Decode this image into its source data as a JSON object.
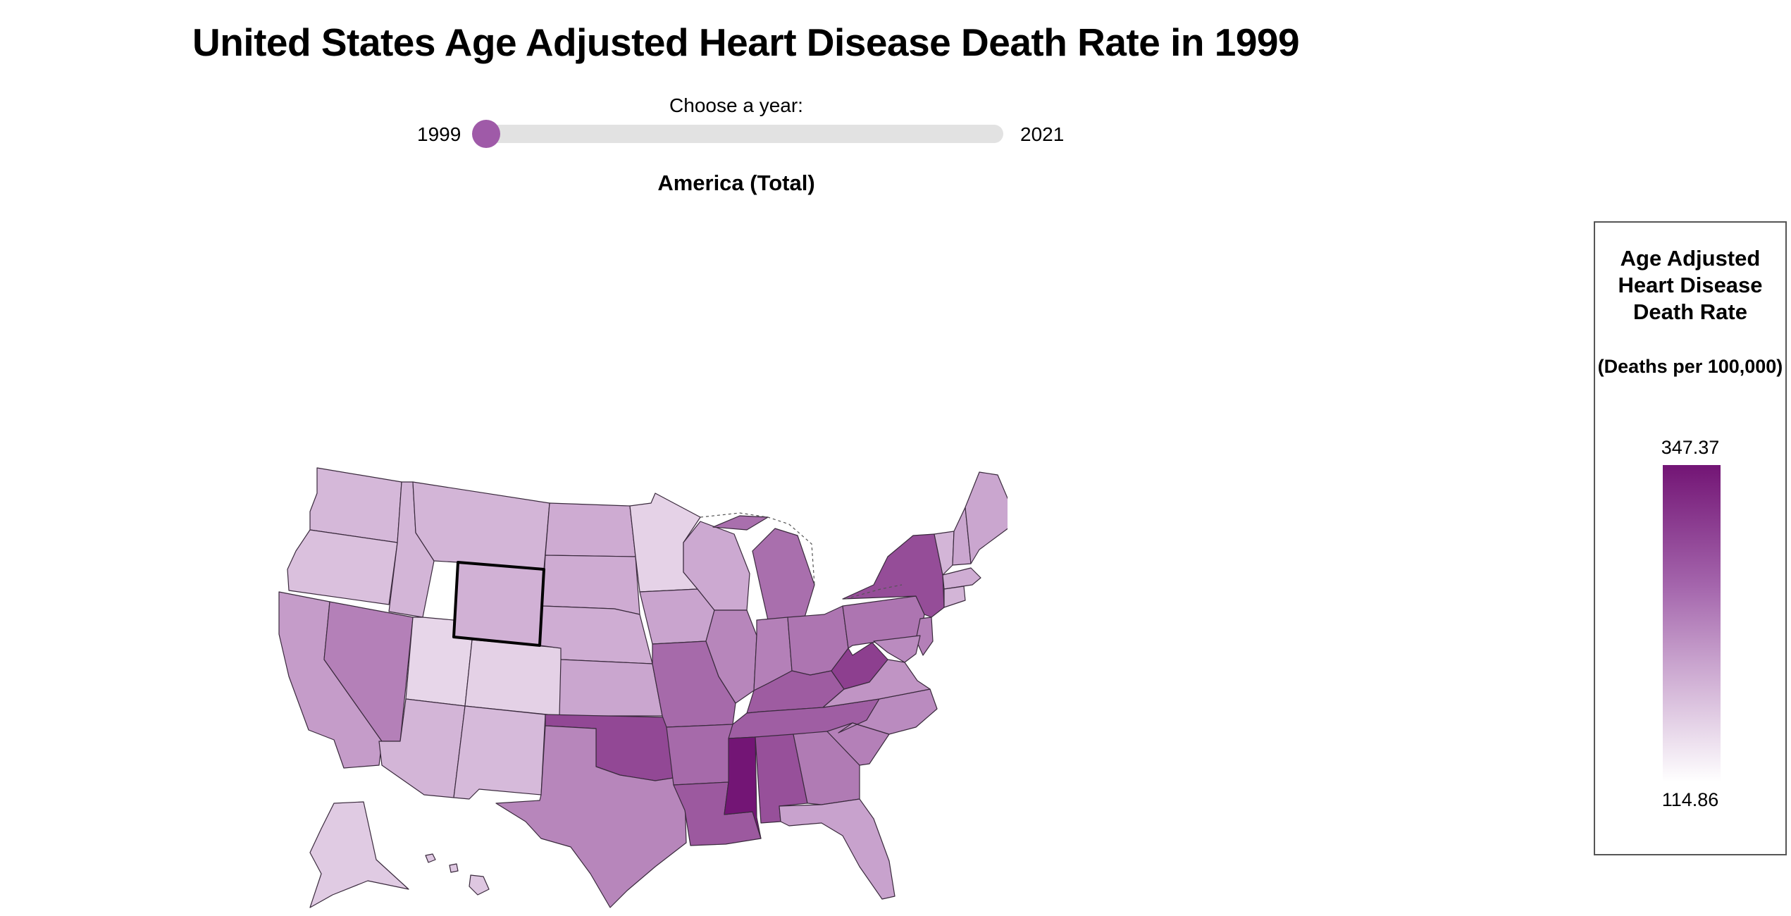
{
  "page": {
    "title": "United States Age Adjusted Heart Disease Death Rate in 1999",
    "subtitle": "America (Total)"
  },
  "slider": {
    "label": "Choose a year:",
    "min_year": "1999",
    "max_year": "2021",
    "selected_year": 1999
  },
  "legend": {
    "title": "Age Adjusted Heart Disease Death Rate",
    "unit": "(Deaths per 100,000)",
    "max": "347.37",
    "min": "114.86",
    "color_high": "#731575",
    "color_low": "#ffffff"
  },
  "map": {
    "selected_state": "Wyoming",
    "state_shades": {
      "Washington": 0.38,
      "Oregon": 0.34,
      "California": 0.52,
      "Nevada": 0.62,
      "Idaho": 0.4,
      "Montana": 0.4,
      "Wyoming": 0.42,
      "Utah": 0.22,
      "Colorado": 0.25,
      "Arizona": 0.4,
      "New Mexico": 0.37,
      "North Dakota": 0.45,
      "South Dakota": 0.45,
      "Nebraska": 0.44,
      "Kansas": 0.48,
      "Oklahoma": 0.82,
      "Texas": 0.6,
      "Minnesota": 0.24,
      "Iowa": 0.49,
      "Missouri": 0.7,
      "Arkansas": 0.7,
      "Louisiana": 0.76,
      "Wisconsin": 0.46,
      "Illinois": 0.6,
      "Michigan": 0.68,
      "Indiana": 0.62,
      "Ohio": 0.66,
      "Kentucky": 0.75,
      "Tennessee": 0.74,
      "Mississippi": 1.0,
      "Alabama": 0.79,
      "Georgia": 0.64,
      "Florida": 0.5,
      "South Carolina": 0.62,
      "North Carolina": 0.58,
      "Virginia": 0.55,
      "West Virginia": 0.85,
      "Pennsylvania": 0.66,
      "New York": 0.8,
      "Vermont": 0.4,
      "New Hampshire": 0.48,
      "Maine": 0.48,
      "Massachusetts": 0.44,
      "Connecticut": 0.4,
      "New Jersey": 0.62,
      "Maryland": 0.58,
      "Alaska": 0.28,
      "Hawaii": 0.3
    }
  }
}
